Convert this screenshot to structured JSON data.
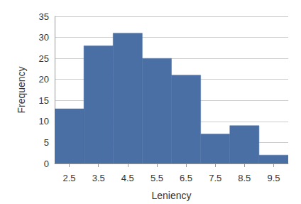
{
  "chart_data": {
    "type": "histogram",
    "xlabel": "Leniency",
    "ylabel": "Frequency",
    "bins": [
      2,
      3,
      4,
      5,
      6,
      7,
      8,
      9,
      10
    ],
    "values": [
      13,
      28,
      31,
      25,
      21,
      7,
      9,
      2
    ],
    "color": "#4a6fa5",
    "xlim": [
      2,
      10
    ],
    "xticks": [
      2.5,
      3.5,
      4.5,
      5.5,
      6.5,
      7.5,
      8.5,
      9.5
    ],
    "ylim": [
      0,
      35
    ],
    "yticks": [
      0,
      5,
      10,
      15,
      20,
      25,
      30,
      35
    ],
    "grid": true
  }
}
